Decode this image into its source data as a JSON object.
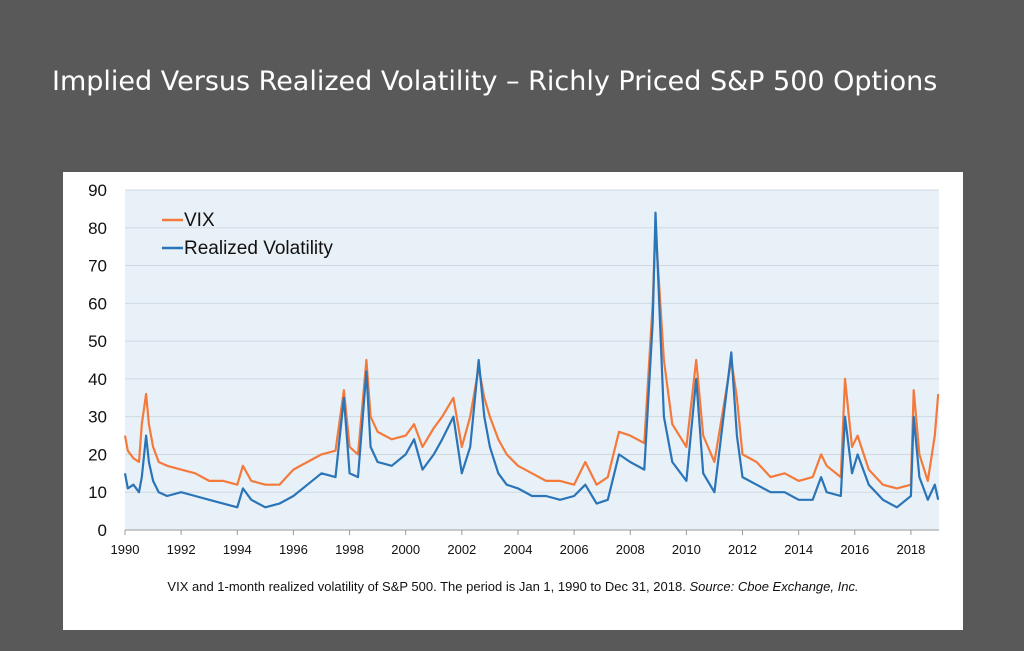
{
  "slide": {
    "title": "Implied Versus Realized Volatility – Richly Priced S&P 500 Options",
    "title_color": "#ffffff",
    "background_color": "#595959"
  },
  "caption": {
    "text": "VIX and 1-month realized volatility of S&P 500.  The period is Jan 1, 1990 to Dec 31, 2018.",
    "source": "Source: Cboe Exchange, Inc."
  },
  "chart_data": {
    "type": "line",
    "title": "",
    "xlabel": "",
    "ylabel": "",
    "xlim": [
      1990,
      2019
    ],
    "ylim": [
      0,
      90
    ],
    "y_ticks": [
      "0",
      "10",
      "20",
      "30",
      "40",
      "50",
      "60",
      "70",
      "80",
      "90"
    ],
    "x_ticks": [
      "1990",
      "1992",
      "1994",
      "1996",
      "1998",
      "2000",
      "2002",
      "2004",
      "2006",
      "2008",
      "2010",
      "2012",
      "2014",
      "2016",
      "2018"
    ],
    "grid": true,
    "legend_position": "top-left",
    "plot_background": "#e9f1f8",
    "series": [
      {
        "name": "VIX",
        "color": "#f47a3c",
        "x": [
          1990.0,
          1990.1,
          1990.3,
          1990.5,
          1990.6,
          1990.75,
          1990.85,
          1991.0,
          1991.2,
          1991.5,
          1992.0,
          1992.5,
          1993.0,
          1993.5,
          1994.0,
          1994.2,
          1994.5,
          1995.0,
          1995.5,
          1996.0,
          1996.5,
          1997.0,
          1997.5,
          1997.8,
          1998.0,
          1998.3,
          1998.6,
          1998.75,
          1999.0,
          1999.5,
          2000.0,
          2000.3,
          2000.6,
          2001.0,
          2001.3,
          2001.7,
          2002.0,
          2002.3,
          2002.6,
          2002.8,
          2003.0,
          2003.3,
          2003.6,
          2004.0,
          2004.5,
          2005.0,
          2005.5,
          2006.0,
          2006.4,
          2006.8,
          2007.2,
          2007.6,
          2008.0,
          2008.5,
          2008.8,
          2008.9,
          2009.2,
          2009.5,
          2010.0,
          2010.35,
          2010.6,
          2011.0,
          2011.6,
          2011.8,
          2012.0,
          2012.5,
          2013.0,
          2013.5,
          2014.0,
          2014.5,
          2014.8,
          2015.0,
          2015.5,
          2015.65,
          2015.9,
          2016.1,
          2016.5,
          2017.0,
          2017.5,
          2018.0,
          2018.1,
          2018.3,
          2018.6,
          2018.85,
          2018.97
        ],
        "values": [
          25,
          21,
          19,
          18,
          28,
          36,
          28,
          22,
          18,
          17,
          16,
          15,
          13,
          13,
          12,
          17,
          13,
          12,
          12,
          16,
          18,
          20,
          21,
          37,
          22,
          20,
          45,
          30,
          26,
          24,
          25,
          28,
          22,
          27,
          30,
          35,
          22,
          30,
          43,
          35,
          30,
          24,
          20,
          17,
          15,
          13,
          13,
          12,
          18,
          12,
          14,
          26,
          25,
          23,
          60,
          80,
          45,
          28,
          22,
          45,
          25,
          18,
          45,
          35,
          20,
          18,
          14,
          15,
          13,
          14,
          20,
          17,
          14,
          40,
          22,
          25,
          16,
          12,
          11,
          12,
          37,
          20,
          13,
          25,
          36
        ]
      },
      {
        "name": "Realized Volatility",
        "color": "#2a74b8",
        "x": [
          1990.0,
          1990.1,
          1990.3,
          1990.5,
          1990.6,
          1990.75,
          1990.85,
          1991.0,
          1991.2,
          1991.5,
          1992.0,
          1992.5,
          1993.0,
          1993.5,
          1994.0,
          1994.2,
          1994.5,
          1995.0,
          1995.5,
          1996.0,
          1996.5,
          1997.0,
          1997.5,
          1997.8,
          1998.0,
          1998.3,
          1998.6,
          1998.75,
          1999.0,
          1999.5,
          2000.0,
          2000.3,
          2000.6,
          2001.0,
          2001.3,
          2001.7,
          2002.0,
          2002.3,
          2002.6,
          2002.8,
          2003.0,
          2003.3,
          2003.6,
          2004.0,
          2004.5,
          2005.0,
          2005.5,
          2006.0,
          2006.4,
          2006.8,
          2007.2,
          2007.6,
          2008.0,
          2008.5,
          2008.8,
          2008.9,
          2009.2,
          2009.5,
          2010.0,
          2010.35,
          2010.6,
          2011.0,
          2011.6,
          2011.8,
          2012.0,
          2012.5,
          2013.0,
          2013.5,
          2014.0,
          2014.5,
          2014.8,
          2015.0,
          2015.5,
          2015.65,
          2015.9,
          2016.1,
          2016.5,
          2017.0,
          2017.5,
          2018.0,
          2018.1,
          2018.3,
          2018.6,
          2018.85,
          2018.97
        ],
        "values": [
          15,
          11,
          12,
          10,
          14,
          25,
          18,
          13,
          10,
          9,
          10,
          9,
          8,
          7,
          6,
          11,
          8,
          6,
          7,
          9,
          12,
          15,
          14,
          35,
          15,
          14,
          42,
          22,
          18,
          17,
          20,
          24,
          16,
          20,
          24,
          30,
          15,
          22,
          45,
          30,
          22,
          15,
          12,
          11,
          9,
          9,
          8,
          9,
          12,
          7,
          8,
          20,
          18,
          16,
          55,
          84,
          30,
          18,
          13,
          40,
          15,
          10,
          47,
          25,
          14,
          12,
          10,
          10,
          8,
          8,
          14,
          10,
          9,
          30,
          15,
          20,
          12,
          8,
          6,
          9,
          30,
          14,
          8,
          12,
          8
        ]
      }
    ]
  }
}
